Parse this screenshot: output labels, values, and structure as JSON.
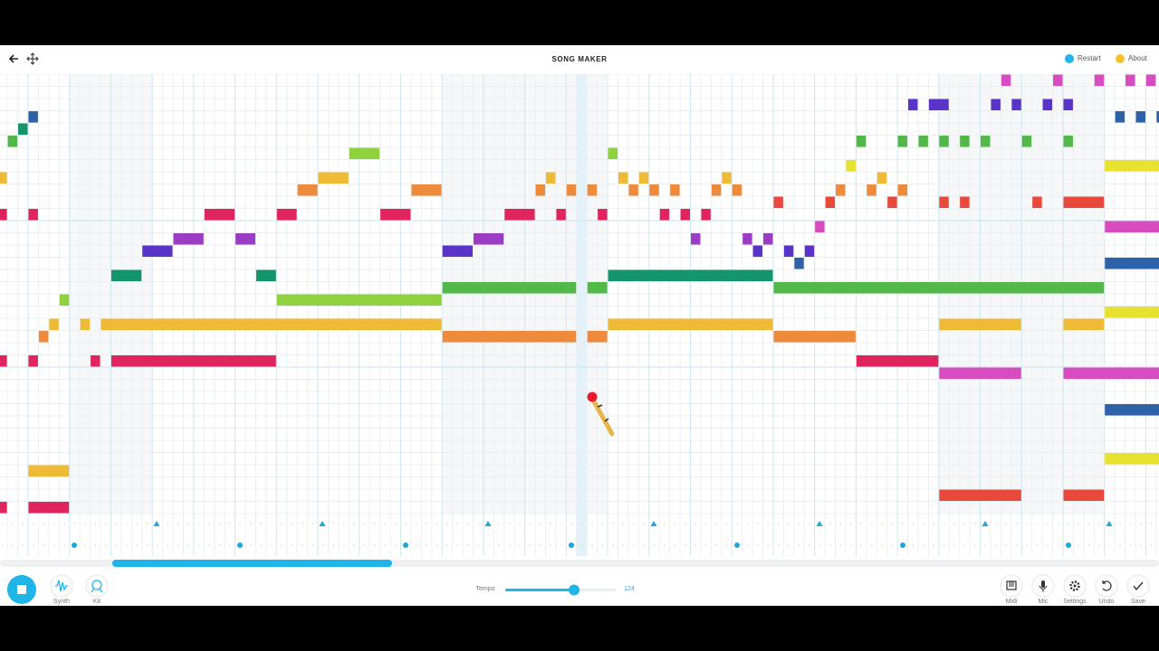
{
  "header": {
    "title": "SONG MAKER",
    "restart": "Restart",
    "about": "About"
  },
  "toolbar": {
    "synth": "Synth",
    "kit": "Kit",
    "tempo_label": "Tempo",
    "tempo_value": "124",
    "midi": "Midi",
    "mic": "Mic",
    "settings": "Settings",
    "undo": "Undo",
    "save": "Save"
  }
}
